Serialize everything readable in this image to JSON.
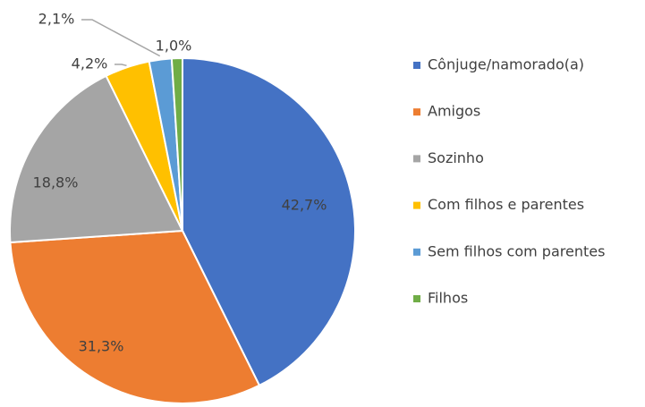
{
  "chart_data": {
    "type": "pie",
    "categories": [
      "Cônjuge/namorado(a)",
      "Amigos",
      "Sozinho",
      "Com filhos e parentes",
      "Sem filhos com parentes",
      "Filhos"
    ],
    "values": [
      42.7,
      31.3,
      18.8,
      4.2,
      2.1,
      1.0
    ],
    "value_labels": [
      "42,7%",
      "31,3%",
      "18,8%",
      "4,2%",
      "2,1%",
      "1,0%"
    ],
    "colors": [
      "#4472c4",
      "#ed7d31",
      "#a5a5a5",
      "#ffc000",
      "#5b9bd5",
      "#70ad47"
    ],
    "legend": "right"
  }
}
